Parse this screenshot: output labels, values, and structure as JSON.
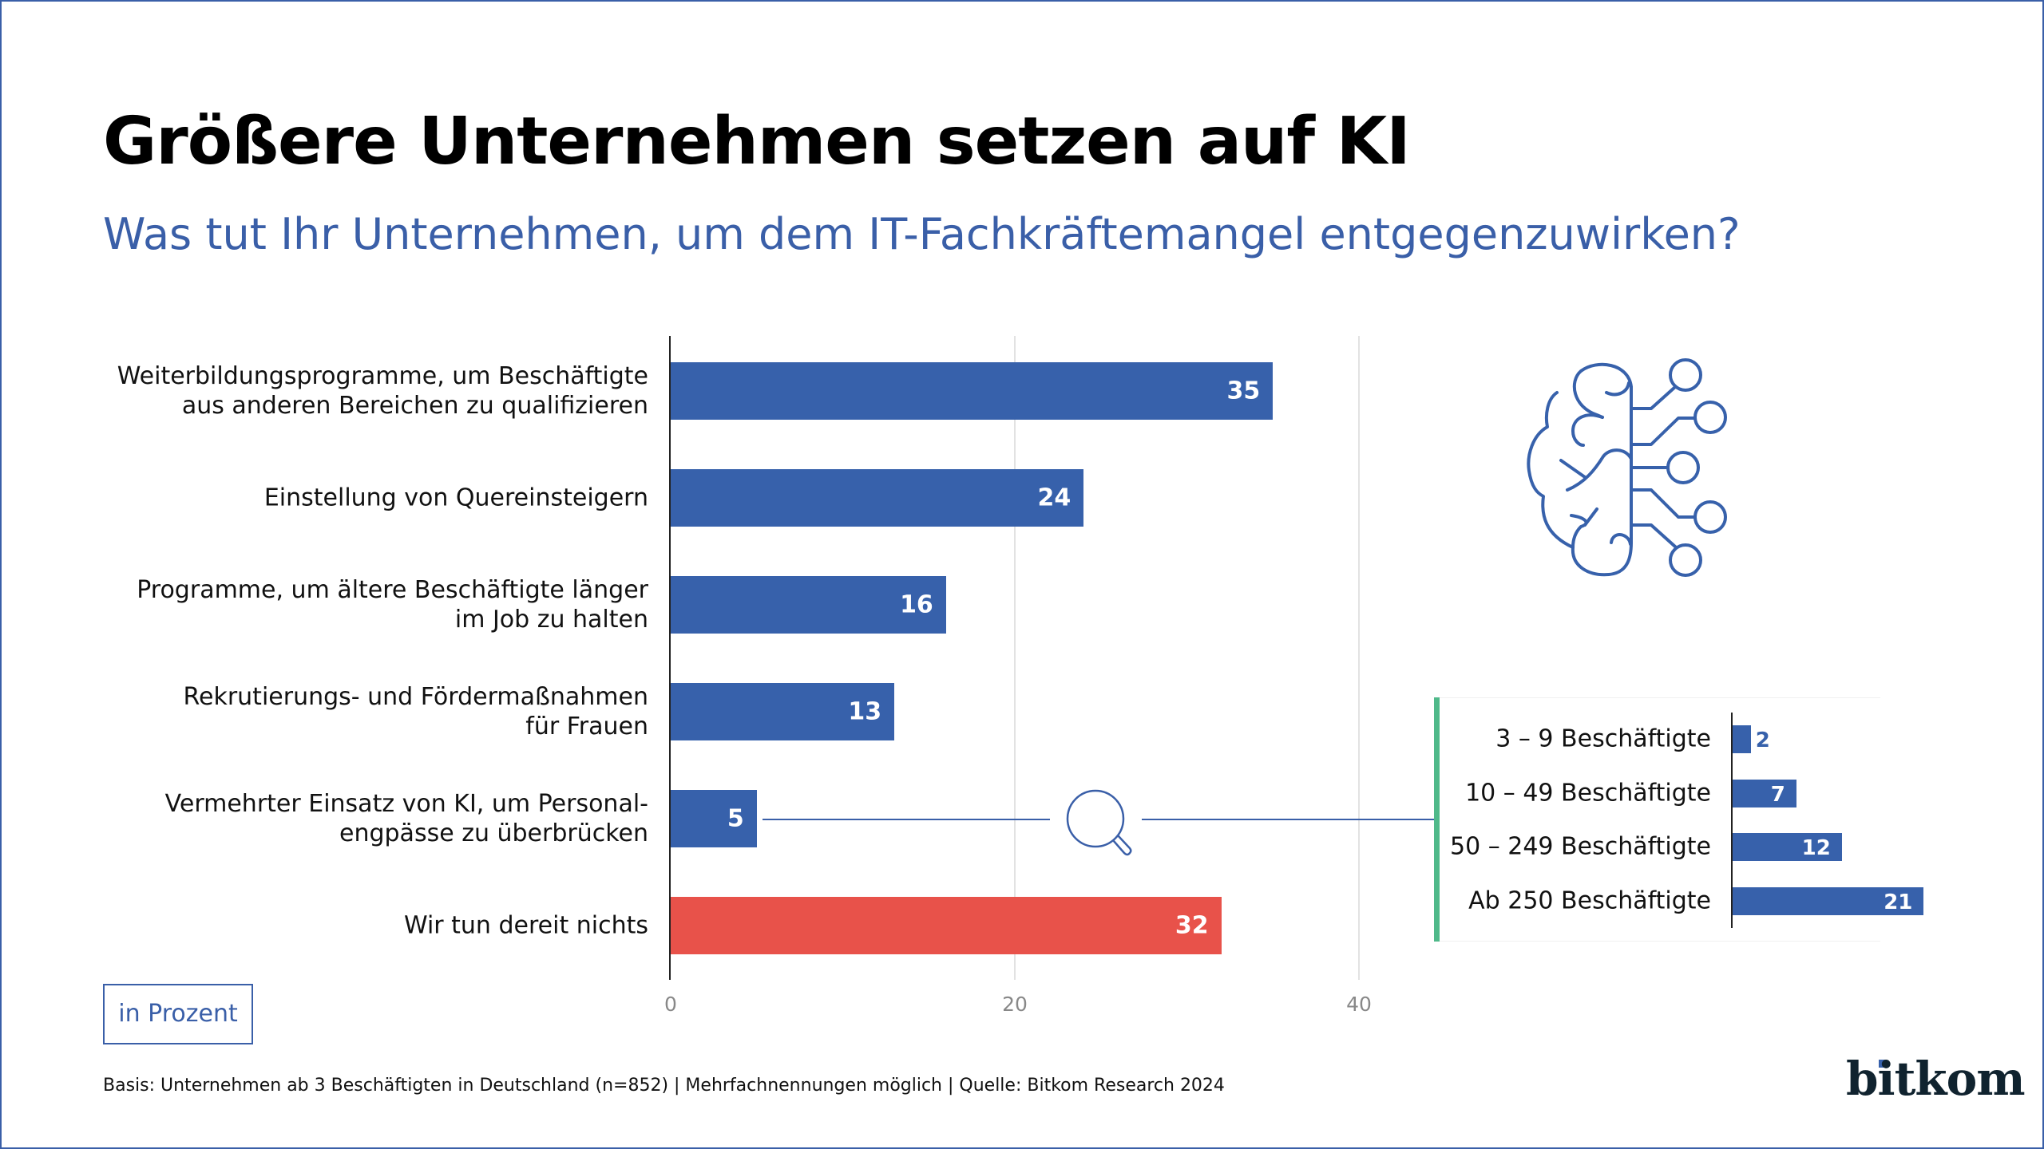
{
  "title": "Größere Unternehmen setzen auf KI",
  "subtitle": "Was tut Ihr Unternehmen, um dem IT-Fachkräftemangel entgegenzuwirken?",
  "unit_label": "in Prozent",
  "footer": "Basis: Unternehmen ab 3 Beschäftigten in Deutschland (n=852) | Mehrfachnennungen möglich | Quelle: Bitkom Research 2024",
  "logo": "bitkom",
  "colors": {
    "bar": "#3761ab",
    "highlight": "#e8524a",
    "accent": "#4fb98a",
    "text_blue": "#3a5fa8"
  },
  "icons": [
    "brain-network-icon",
    "magnifier-icon"
  ],
  "chart_data": [
    {
      "type": "bar",
      "orientation": "horizontal",
      "categories": [
        "Weiterbildungsprogramme, um Beschäftigte\naus anderen Bereichen zu qualifizieren",
        "Einstellung von Quereinsteigern",
        "Programme, um ältere Beschäftigte länger\nim Job zu halten",
        "Rekrutierungs- und Fördermaßnahmen\nfür Frauen",
        "Vermehrter Einsatz von KI, um Personal-\nengpässe zu überbrücken",
        "Wir tun dereit nichts"
      ],
      "values": [
        35,
        24,
        16,
        13,
        5,
        32
      ],
      "highlight_index": 5,
      "xlim": [
        0,
        45
      ],
      "ticks": [
        "0",
        "20",
        "40"
      ],
      "grid": true
    },
    {
      "type": "bar",
      "orientation": "horizontal",
      "categories": [
        "3 – 9 Beschäftigte",
        "10 – 49 Beschäftigte",
        "50 – 249 Beschäftigte",
        "Ab 250 Beschäftigte"
      ],
      "values": [
        2,
        7,
        12,
        21
      ],
      "grid": false
    }
  ]
}
